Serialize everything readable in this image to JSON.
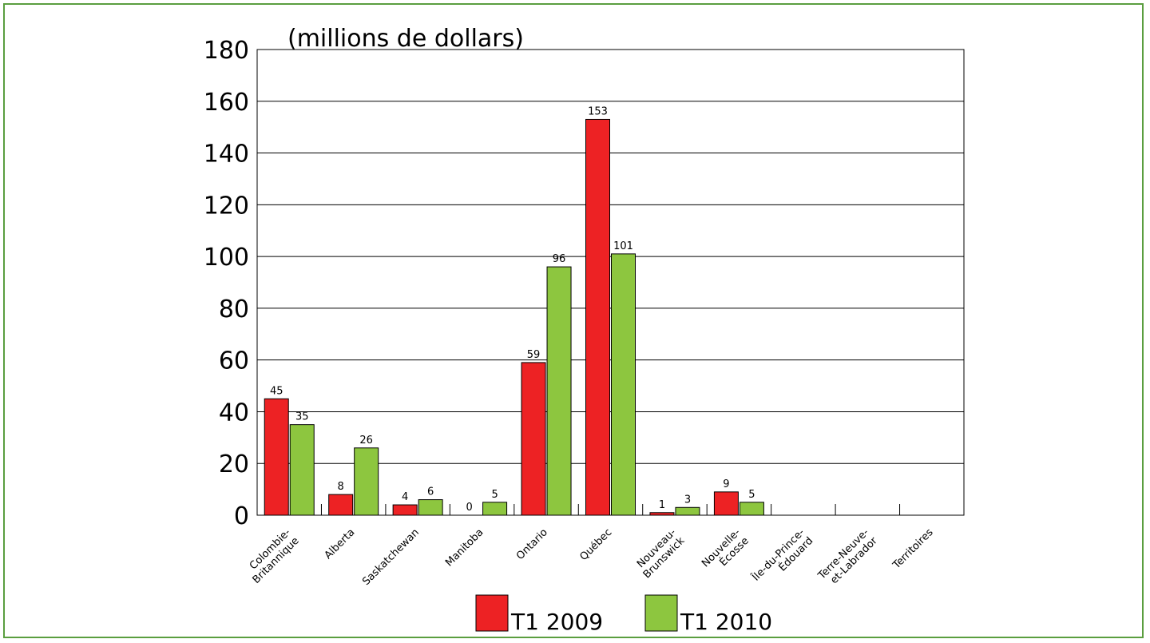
{
  "chart_data": {
    "type": "bar",
    "title": "(millions de dollars)",
    "categories": [
      "Colombie-\nBritannique",
      "Alberta",
      "Saskatchewan",
      "Manitoba",
      "Ontario",
      "Québec",
      "Nouveau-\nBrunswick",
      "Nouvelle-\nÉcosse",
      "Île-du-Prince-\nÉdouard",
      "Terre-Neuve-\net-Labrador",
      "Territoires"
    ],
    "series": [
      {
        "name": "T1 2009",
        "color": "#ed2224",
        "values": [
          45,
          8,
          4,
          0,
          59,
          153,
          1,
          9,
          null,
          null,
          null
        ]
      },
      {
        "name": "T1 2010",
        "color": "#8dc63f",
        "values": [
          35,
          26,
          6,
          5,
          96,
          101,
          3,
          5,
          null,
          null,
          null
        ]
      }
    ],
    "ylim": [
      0,
      180
    ],
    "yticks": [
      0,
      20,
      40,
      60,
      80,
      100,
      120,
      140,
      160,
      180
    ],
    "grid": true,
    "legend": "bottom"
  }
}
